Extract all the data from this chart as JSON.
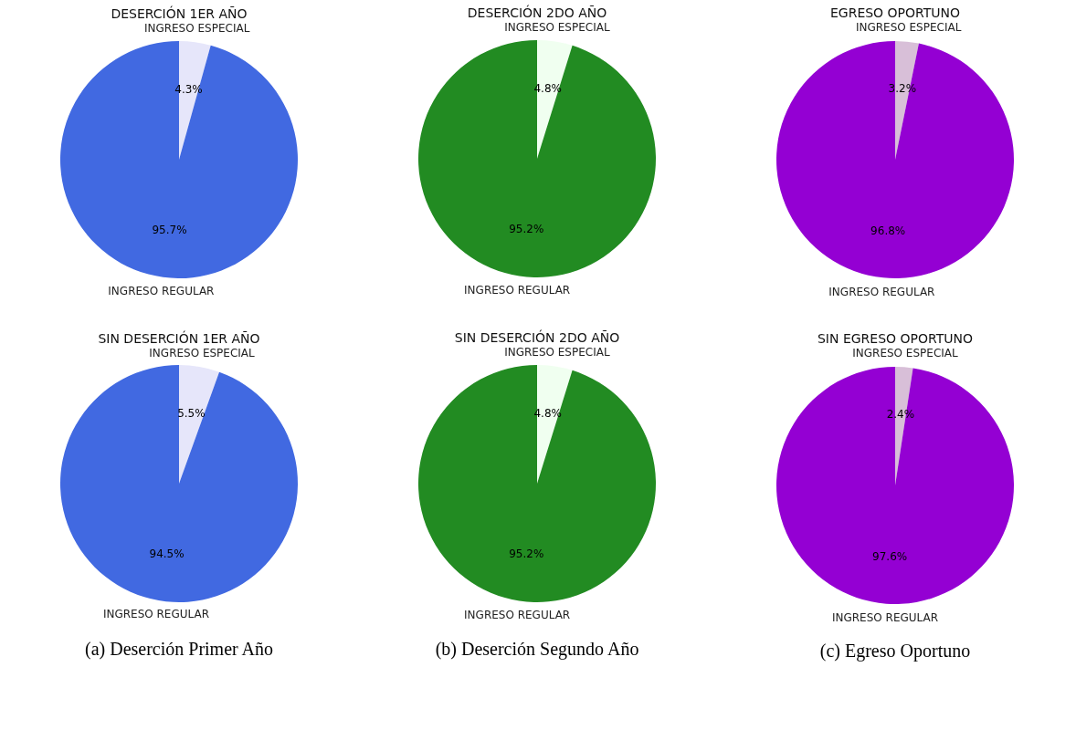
{
  "chart_data": [
    {
      "type": "pie",
      "title": "DESERCIÓN 1ER AÑO",
      "categories": [
        "INGRESO ESPECIAL",
        "INGRESO REGULAR"
      ],
      "values": [
        4.3,
        95.7
      ],
      "colors": [
        "#e6e6fa",
        "#4169e1"
      ],
      "value_labels": [
        "4.3%",
        "95.7%"
      ],
      "legend": false
    },
    {
      "type": "pie",
      "title": "DESERCIÓN 2DO AÑO",
      "categories": [
        "INGRESO ESPECIAL",
        "INGRESO REGULAR"
      ],
      "values": [
        4.8,
        95.2
      ],
      "colors": [
        "#f0fff0",
        "#228b22"
      ],
      "value_labels": [
        "4.8%",
        "95.2%"
      ],
      "legend": false
    },
    {
      "type": "pie",
      "title": "EGRESO OPORTUNO",
      "categories": [
        "INGRESO ESPECIAL",
        "INGRESO REGULAR"
      ],
      "values": [
        3.2,
        96.8
      ],
      "colors": [
        "#d8bfd8",
        "#9400d3"
      ],
      "value_labels": [
        "3.2%",
        "96.8%"
      ],
      "legend": false
    },
    {
      "type": "pie",
      "title": "SIN DESERCIÓN 1ER AÑO",
      "categories": [
        "INGRESO ESPECIAL",
        "INGRESO REGULAR"
      ],
      "values": [
        5.5,
        94.5
      ],
      "colors": [
        "#e6e6fa",
        "#4169e1"
      ],
      "value_labels": [
        "5.5%",
        "94.5%"
      ],
      "legend": false,
      "annotations": [
        "(a) Deserción Primer Año"
      ]
    },
    {
      "type": "pie",
      "title": "SIN DESERCIÓN 2DO AÑO",
      "categories": [
        "INGRESO ESPECIAL",
        "INGRESO REGULAR"
      ],
      "values": [
        4.8,
        95.2
      ],
      "colors": [
        "#f0fff0",
        "#228b22"
      ],
      "value_labels": [
        "4.8%",
        "95.2%"
      ],
      "legend": false,
      "annotations": [
        "(b) Deserción Segundo Año"
      ]
    },
    {
      "type": "pie",
      "title": "SIN EGRESO OPORTUNO",
      "categories": [
        "INGRESO ESPECIAL",
        "INGRESO REGULAR"
      ],
      "values": [
        2.4,
        97.6
      ],
      "colors": [
        "#d8bfd8",
        "#9400d3"
      ],
      "value_labels": [
        "2.4%",
        "97.6%"
      ],
      "legend": false,
      "annotations": [
        "(c) Egreso Oportuno"
      ]
    }
  ]
}
